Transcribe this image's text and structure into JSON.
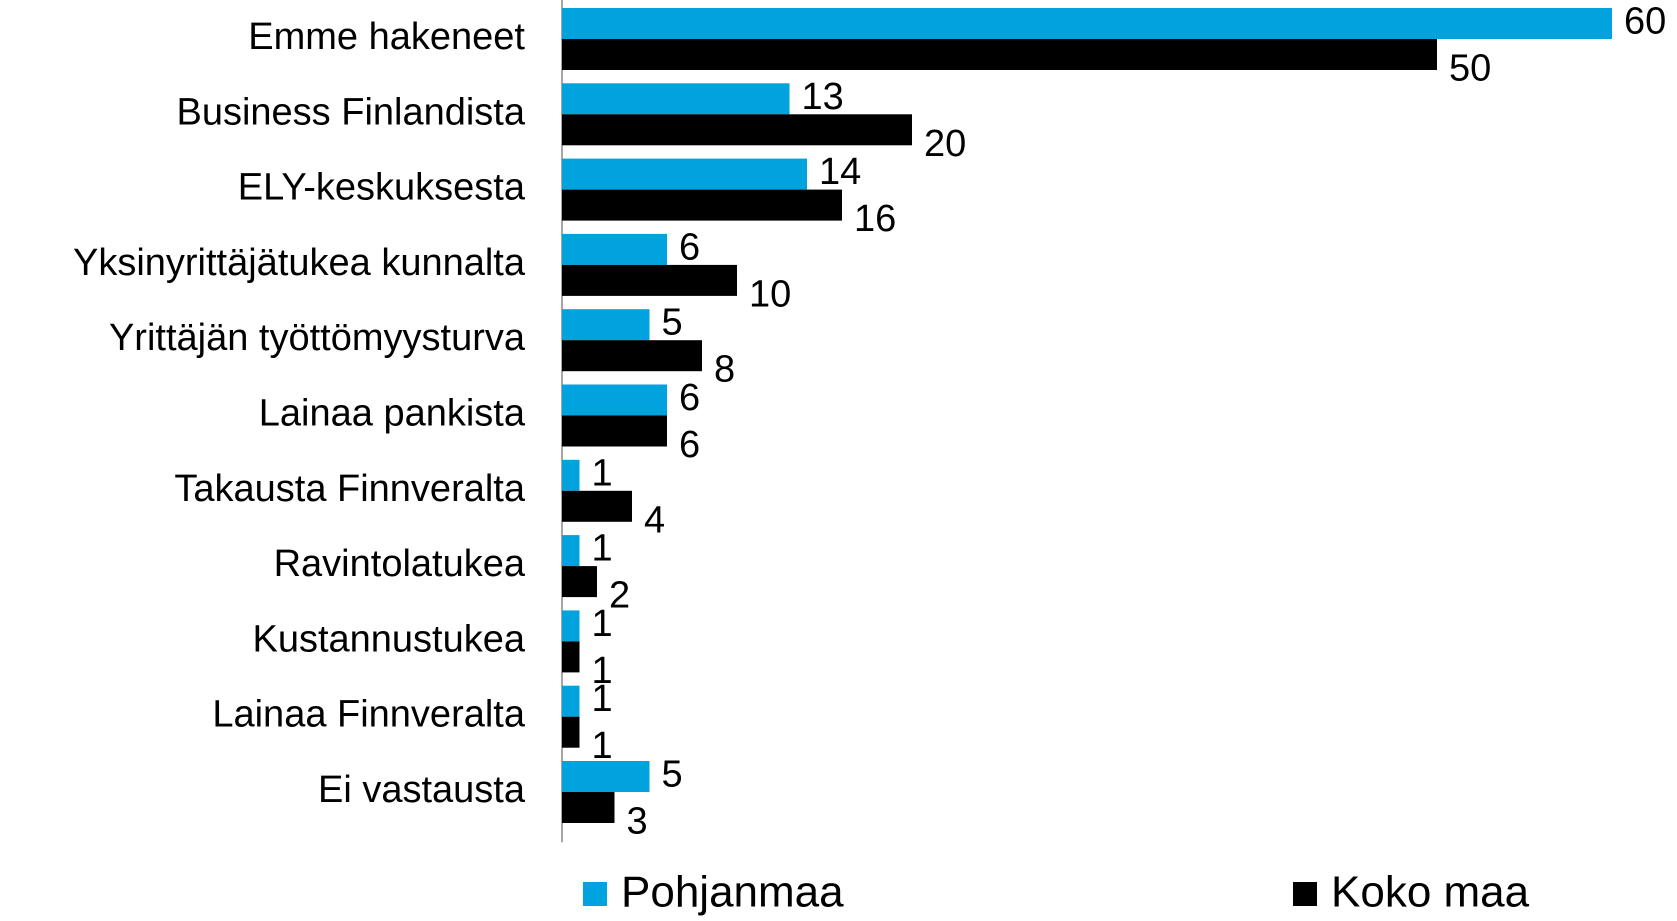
{
  "chart_data": {
    "type": "hbar",
    "categories": [
      "Emme hakeneet",
      "Business Finlandista",
      "ELY-keskuksesta",
      "Yksinyrittäjätukea kunnalta",
      "Yrittäjän työttömyysturva",
      "Lainaa pankista",
      "Takausta Finnveralta",
      "Ravintolatukea",
      "Kustannustukea",
      "Lainaa Finnveralta",
      "Ei vastausta"
    ],
    "series": [
      {
        "name": "Pohjanmaa",
        "color": "#00a3dd",
        "values": [
          60,
          13,
          14,
          6,
          5,
          6,
          1,
          1,
          1,
          1,
          5
        ]
      },
      {
        "name": "Koko maa",
        "color": "#000000",
        "values": [
          50,
          20,
          16,
          10,
          8,
          6,
          4,
          2,
          1,
          1,
          3
        ]
      }
    ]
  }
}
